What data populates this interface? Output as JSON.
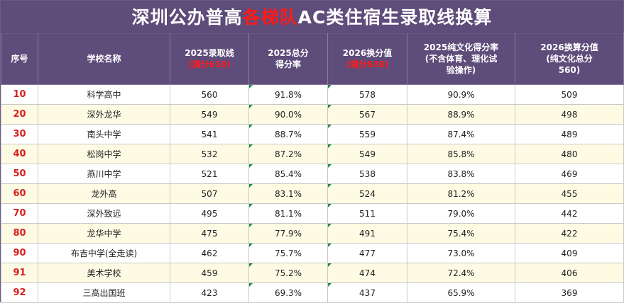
{
  "title": {
    "part1": "深圳公办普高",
    "highlight": "各梯队",
    "part2": "AC类住宿生录取线换算"
  },
  "headers": {
    "rank": "序号",
    "school": "学校名称",
    "score2025_line1": "2025录取线",
    "score2025_line2": "(满分610)",
    "rate2025_line1": "2025总分",
    "rate2025_line2": "得分率",
    "score2026_line1": "2026换分值",
    "score2026_line2": "(满分630)",
    "pure_line1": "2025纯文化得分率",
    "pure_line2": "(不含体育、理化试",
    "pure_line3": "验操作)",
    "pure2026_line1": "2026换算分值",
    "pure2026_line2": "(纯文化总分",
    "pure2026_line3": "560)"
  },
  "rows": [
    {
      "rank": "10",
      "school": "科学高中",
      "score2025": "560",
      "rate2025": "91.8%",
      "score2026": "578",
      "pure_rate": "90.9%",
      "pure2026": "509"
    },
    {
      "rank": "20",
      "school": "深外龙华",
      "score2025": "549",
      "rate2025": "90.0%",
      "score2026": "567",
      "pure_rate": "88.9%",
      "pure2026": "498"
    },
    {
      "rank": "30",
      "school": "南头中学",
      "score2025": "541",
      "rate2025": "88.7%",
      "score2026": "559",
      "pure_rate": "87.4%",
      "pure2026": "489"
    },
    {
      "rank": "40",
      "school": "松岗中学",
      "score2025": "532",
      "rate2025": "87.2%",
      "score2026": "549",
      "pure_rate": "85.8%",
      "pure2026": "480"
    },
    {
      "rank": "50",
      "school": "燕川中学",
      "score2025": "521",
      "rate2025": "85.4%",
      "score2026": "538",
      "pure_rate": "83.8%",
      "pure2026": "469"
    },
    {
      "rank": "60",
      "school": "龙外高",
      "score2025": "507",
      "rate2025": "83.1%",
      "score2026": "524",
      "pure_rate": "81.2%",
      "pure2026": "455"
    },
    {
      "rank": "70",
      "school": "深外致远",
      "score2025": "495",
      "rate2025": "81.1%",
      "score2026": "511",
      "pure_rate": "79.0%",
      "pure2026": "442"
    },
    {
      "rank": "80",
      "school": "龙华中学",
      "score2025": "475",
      "rate2025": "77.9%",
      "score2026": "491",
      "pure_rate": "75.4%",
      "pure2026": "422"
    },
    {
      "rank": "90",
      "school": "布吉中学(全走读)",
      "score2025": "462",
      "rate2025": "75.7%",
      "score2026": "477",
      "pure_rate": "73.0%",
      "pure2026": "409"
    },
    {
      "rank": "91",
      "school": "美术学校",
      "score2025": "459",
      "rate2025": "75.2%",
      "score2026": "474",
      "pure_rate": "72.4%",
      "pure2026": "406"
    },
    {
      "rank": "92",
      "school": "三高出国班",
      "score2025": "423",
      "rate2025": "69.3%",
      "score2026": "437",
      "pure_rate": "65.9%",
      "pure2026": "369"
    }
  ],
  "colors": {
    "header_bg": "#5e4c7a",
    "highlight": "#ff1a1a",
    "rank_text": "#d61f1f",
    "row_alt": "#fdfbe3",
    "cell_marker": "#1d8a3c"
  }
}
